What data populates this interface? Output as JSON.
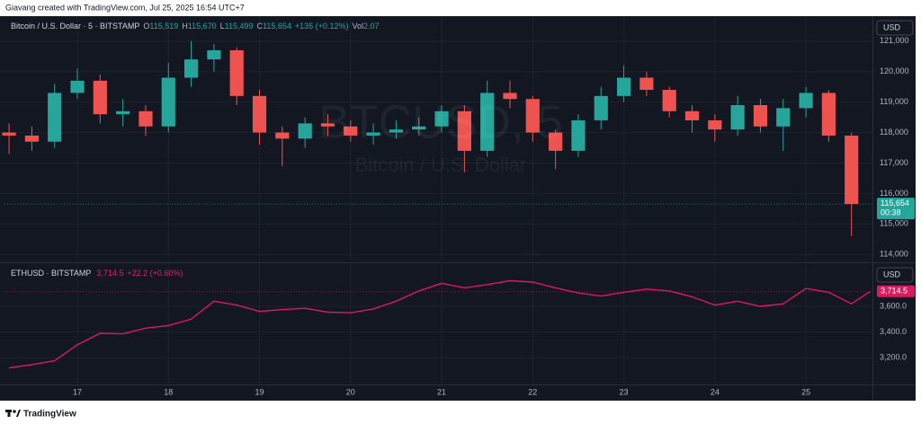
{
  "header": {
    "credit": "Giavang created with TradingView.com, Jul 25, 2025 16:54 UTC+7"
  },
  "footer": {
    "brand": "TradingView"
  },
  "chart_data": [
    {
      "type": "candlestick",
      "legend": {
        "symbol": "Bitcoin / U.S. Dollar · 5 · BITSTAMP",
        "fields": [
          {
            "key": "O",
            "value": "115,519"
          },
          {
            "key": "H",
            "value": "115,670"
          },
          {
            "key": "L",
            "value": "115,499"
          },
          {
            "key": "C",
            "value": "115,654"
          }
        ],
        "change": "+135 (+0.12%)",
        "vol_key": "Vol",
        "vol": "2.07"
      },
      "watermark": {
        "ticker": "BTCUSD, 5",
        "name": "Bitcoin / U.S. Dollar"
      },
      "currency": "USD",
      "up_color": "#26a69a",
      "down_color": "#ef5350",
      "x": [
        16.25,
        16.5,
        16.75,
        17,
        17.25,
        17.5,
        17.75,
        18,
        18.25,
        18.5,
        18.75,
        19,
        19.25,
        19.5,
        19.75,
        20,
        20.25,
        20.5,
        20.75,
        21,
        21.25,
        21.5,
        21.75,
        22,
        22.25,
        22.5,
        22.75,
        23,
        23.25,
        23.5,
        23.75,
        24,
        24.25,
        24.5,
        24.75,
        25,
        25.25,
        25.5
      ],
      "open": [
        118000,
        117900,
        117700,
        119300,
        119700,
        118600,
        118700,
        118200,
        119800,
        120400,
        120700,
        119200,
        118000,
        117800,
        118300,
        118200,
        117900,
        118000,
        118100,
        118200,
        118700,
        117400,
        119300,
        119100,
        118000,
        117400,
        118400,
        119200,
        119800,
        119400,
        118700,
        118400,
        118100,
        118900,
        118200,
        118800,
        119300,
        117900
      ],
      "high": [
        118300,
        118200,
        119600,
        120100,
        119900,
        119100,
        118900,
        120300,
        121000,
        120900,
        120800,
        119400,
        118200,
        118500,
        118600,
        118400,
        118300,
        118400,
        118500,
        118900,
        118900,
        119700,
        119700,
        119200,
        118100,
        118600,
        119500,
        120200,
        120000,
        119500,
        118900,
        118600,
        119200,
        119100,
        119100,
        119500,
        119400,
        118000
      ],
      "low": [
        117300,
        117400,
        117500,
        119100,
        118300,
        118200,
        117900,
        118000,
        119500,
        120000,
        118900,
        117600,
        116900,
        117500,
        117900,
        117700,
        117600,
        117800,
        117900,
        118000,
        116700,
        117200,
        118800,
        117700,
        116800,
        117200,
        118100,
        119000,
        119200,
        118500,
        118000,
        117700,
        117900,
        118000,
        117400,
        118500,
        117700,
        114600
      ],
      "close": [
        117900,
        117700,
        119300,
        119700,
        118600,
        118700,
        118200,
        119800,
        120400,
        120700,
        119200,
        118000,
        117800,
        118300,
        118200,
        117900,
        118000,
        118100,
        118200,
        118700,
        117400,
        119300,
        119100,
        118000,
        117400,
        118400,
        119200,
        119800,
        119400,
        118700,
        118400,
        118100,
        118900,
        118200,
        118800,
        119300,
        117900,
        115654
      ],
      "xlim": [
        16.2,
        25.73
      ],
      "ylim": [
        113800,
        121760
      ],
      "yticks": [
        {
          "value": 114000,
          "label": "114,000"
        },
        {
          "value": 115000,
          "label": "115,000"
        },
        {
          "value": 116000,
          "label": "116,000"
        },
        {
          "value": 117000,
          "label": "117,000"
        },
        {
          "value": 118000,
          "label": "118,000"
        },
        {
          "value": 119000,
          "label": "119,000"
        },
        {
          "value": 120000,
          "label": "120,000"
        },
        {
          "value": 121000,
          "label": "121,000"
        }
      ],
      "last_price": {
        "value": 115654,
        "label": "115,654"
      },
      "countdown": "00:38",
      "grid": true
    },
    {
      "type": "line",
      "legend": {
        "symbol": "ETHUSD · BITSTAMP",
        "last": "3,714.5",
        "change": "+22.2 (+0.60%)"
      },
      "currency": "USD",
      "color": "#d81b60",
      "x": [
        16.25,
        16.5,
        16.75,
        17,
        17.25,
        17.5,
        17.75,
        18,
        18.25,
        18.5,
        18.75,
        19,
        19.25,
        19.5,
        19.75,
        20,
        20.25,
        20.5,
        20.75,
        21,
        21.25,
        21.5,
        21.75,
        22,
        22.25,
        22.5,
        22.75,
        23,
        23.25,
        23.5,
        23.75,
        24,
        24.25,
        24.5,
        24.75,
        25,
        25.25,
        25.5,
        25.7
      ],
      "values": [
        3120,
        3145,
        3175,
        3300,
        3390,
        3385,
        3430,
        3450,
        3500,
        3640,
        3610,
        3560,
        3575,
        3585,
        3555,
        3550,
        3580,
        3640,
        3720,
        3780,
        3745,
        3770,
        3800,
        3790,
        3745,
        3705,
        3680,
        3710,
        3735,
        3720,
        3675,
        3610,
        3640,
        3600,
        3620,
        3740,
        3710,
        3620,
        3714.5
      ],
      "xlim": [
        16.2,
        25.73
      ],
      "xticks": [
        17,
        18,
        19,
        20,
        21,
        22,
        23,
        24,
        25
      ],
      "ylim": [
        2990,
        3923
      ],
      "yticks": [
        {
          "value": 3200,
          "label": "3,200.0"
        },
        {
          "value": 3400,
          "label": "3,400.0"
        },
        {
          "value": 3600,
          "label": "3,600.0"
        }
      ],
      "last_price": {
        "value": 3714.5,
        "label": "3,714.5"
      },
      "grid": true
    }
  ]
}
